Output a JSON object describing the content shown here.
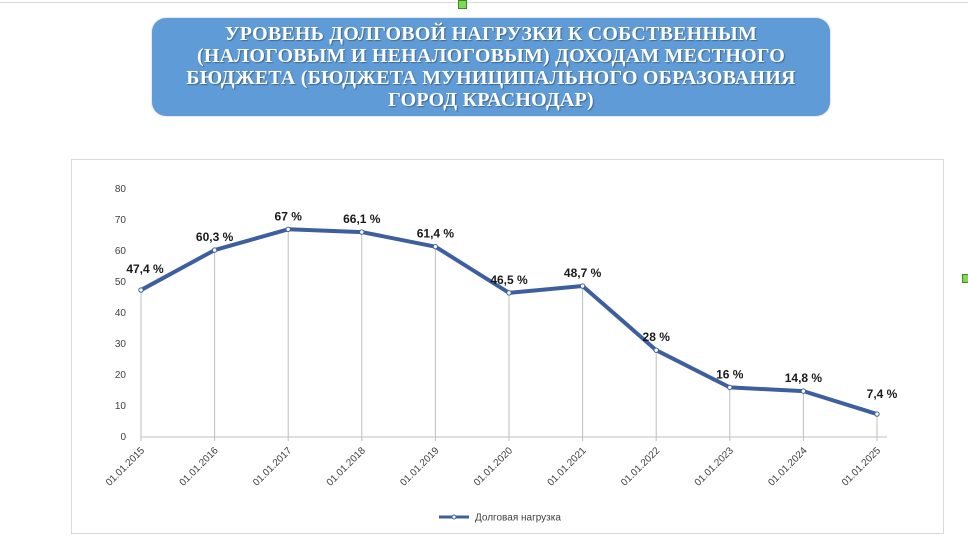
{
  "title": "УРОВЕНЬ ДОЛГОВОЙ НАГРУЗКИ К СОБСТВЕННЫМ (НАЛОГОВЫМ И НЕНАЛОГОВЫМ) ДОХОДАМ МЕСТНОГО БЮДЖЕТА (БЮДЖЕТА МУНИЦИПАЛЬНОГО ОБРАЗОВАНИЯ ГОРОД КРАСНОДАР)",
  "colors": {
    "title_background": "#5f9bd6",
    "title_text": "#ffffff",
    "series_line": "#3d5fa0",
    "gridline": "#bfbfbf",
    "handle": "#7ed957"
  },
  "chart_data": {
    "type": "line",
    "x": [
      "01.01.2015",
      "01.01.2016",
      "01.01.2017",
      "01.01.2018",
      "01.01.2019",
      "01.01.2020",
      "01.01.2021",
      "01.01.2022",
      "01.01.2023",
      "01.01.2024",
      "01.01.2025"
    ],
    "series": [
      {
        "name": "Долговая нагрузка",
        "values": [
          47.4,
          60.3,
          67,
          66.1,
          61.4,
          46.5,
          48.7,
          28,
          16,
          14.8,
          7.4
        ],
        "labels": [
          "47,4 %",
          "60,3 %",
          "67 %",
          "66,1 %",
          "61,4 %",
          "46,5 %",
          "48,7 %",
          "28 %",
          "16 %",
          "14,8 %",
          "7,4 %"
        ]
      }
    ],
    "y_ticks": [
      "0",
      "10",
      "20",
      "30",
      "40",
      "50",
      "60",
      "70",
      "80"
    ],
    "ylim": [
      0,
      80
    ],
    "grid": "vertical lines at each category",
    "legend": "bottom-center",
    "xlabel": "",
    "ylabel": ""
  }
}
